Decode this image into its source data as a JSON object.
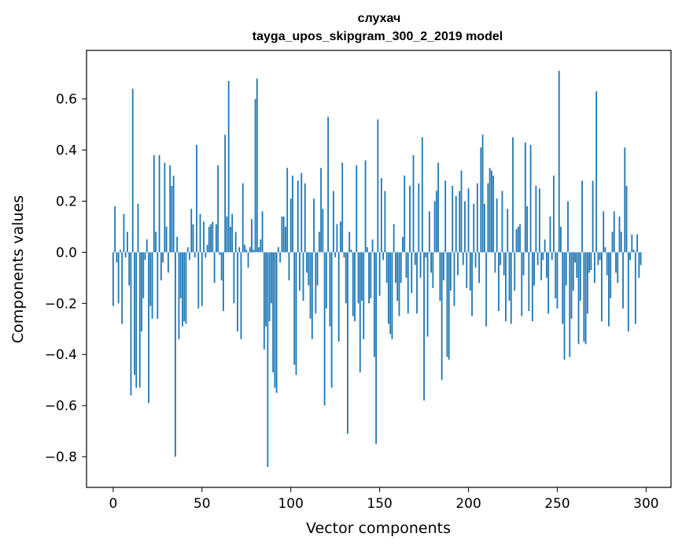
{
  "chart_data": {
    "type": "bar",
    "title": "слухач",
    "subtitle": "tayga_upos_skipgram_300_2_2019 model",
    "xlabel": "Vector components",
    "ylabel": "Components values",
    "xlim": [
      -15,
      314
    ],
    "ylim": [
      -0.92,
      0.79
    ],
    "xticks": [
      0,
      50,
      100,
      150,
      200,
      250,
      300
    ],
    "yticks": [
      -0.8,
      -0.6,
      -0.4,
      -0.2,
      0.0,
      0.2,
      0.4,
      0.6
    ],
    "ytick_labels": [
      "−0.8",
      "−0.6",
      "−0.4",
      "−0.2",
      "0.0",
      "0.2",
      "0.4",
      "0.6"
    ],
    "bar_color": "#1f77b4",
    "values": [
      -0.21,
      0.18,
      -0.04,
      -0.2,
      0.01,
      -0.28,
      0.15,
      -0.02,
      0.08,
      -0.13,
      -0.56,
      0.64,
      -0.48,
      -0.53,
      0.19,
      -0.53,
      -0.31,
      -0.18,
      -0.03,
      0.05,
      -0.59,
      -0.21,
      -0.26,
      0.38,
      0.08,
      -0.26,
      0.38,
      -0.11,
      -0.04,
      0.35,
      0.1,
      -0.08,
      0.34,
      0.26,
      0.3,
      -0.8,
      0.06,
      -0.34,
      -0.18,
      -0.29,
      -0.27,
      -0.28,
      0.02,
      -0.03,
      0.17,
      0.11,
      -0.02,
      0.42,
      -0.22,
      0.15,
      -0.21,
      0.12,
      -0.02,
      0.03,
      0.1,
      0.11,
      0.12,
      -0.12,
      0.11,
      0.34,
      -0.01,
      -0.11,
      -0.23,
      0.46,
      0.14,
      0.67,
      0.1,
      0.15,
      -0.2,
      0.08,
      -0.31,
      0.02,
      -0.34,
      0.27,
      0.03,
      0.01,
      -0.06,
      0.02,
      0.13,
      0.01,
      0.6,
      0.68,
      0.02,
      0.05,
      0.16,
      -0.38,
      -0.29,
      -0.84,
      -0.27,
      -0.2,
      -0.47,
      -0.53,
      -0.55,
      0.02,
      -0.04,
      0.14,
      0.14,
      0.1,
      0.33,
      -0.11,
      0.21,
      0.3,
      -0.44,
      -0.48,
      0.28,
      -0.15,
      0.31,
      -0.19,
      0.27,
      -0.08,
      -0.13,
      -0.26,
      -0.34,
      0.21,
      -0.24,
      -0.13,
      0.08,
      0.33,
      0.17,
      -0.6,
      -0.22,
      0.53,
      -0.29,
      -0.53,
      0.24,
      -0.02,
      0.11,
      -0.35,
      0.12,
      0.35,
      -0.02,
      -0.2,
      -0.71,
      0.08,
      0.01,
      -0.25,
      -0.27,
      0.34,
      -0.2,
      -0.47,
      -0.19,
      -0.34,
      0.36,
      0.02,
      -0.2,
      -0.18,
      0.05,
      -0.41,
      -0.75,
      0.52,
      -0.17,
      0.29,
      -0.03,
      0.24,
      -0.12,
      -0.28,
      -0.32,
      -0.34,
      0.11,
      -0.12,
      -0.19,
      -0.25,
      -0.12,
      0.06,
      0.3,
      -0.1,
      -0.24,
      0.26,
      -0.16,
      0.38,
      -0.05,
      -0.24,
      0.27,
      -0.1,
      0.45,
      -0.58,
      -0.02,
      -0.33,
      0.16,
      -0.08,
      -0.14,
      0.2,
      0.24,
      0.35,
      -0.19,
      -0.5,
      -0.11,
      0.28,
      -0.41,
      -0.42,
      -0.15,
      0.26,
      -0.21,
      0.22,
      -0.09,
      0.24,
      0.32,
      -0.05,
      0.2,
      -0.14,
      0.25,
      -0.15,
      -0.25,
      0.19,
      -0.06,
      0.27,
      -0.12,
      0.41,
      0.46,
      0.19,
      -0.29,
      0.27,
      0.33,
      0.32,
      0.3,
      -0.08,
      0.21,
      -0.23,
      -0.05,
      0.24,
      -0.09,
      -0.27,
      0.17,
      -0.19,
      -0.28,
      0.45,
      -0.15,
      0.09,
      0.1,
      0.11,
      -0.25,
      -0.09,
      0.43,
      0.18,
      -0.23,
      0.42,
      -0.27,
      -0.13,
      0.26,
      -0.05,
      0.25,
      -0.11,
      -0.03,
      0.05,
      -0.1,
      -0.24,
      0.14,
      -0.03,
      0.3,
      -0.18,
      -0.22,
      0.71,
      0.1,
      -0.28,
      -0.42,
      -0.13,
      0.2,
      -0.41,
      -0.26,
      -0.15,
      -0.04,
      -0.1,
      -0.36,
      -0.19,
      0.28,
      -0.35,
      -0.36,
      -0.24,
      -0.08,
      -0.07,
      0.28,
      -0.12,
      0.63,
      -0.05,
      -0.03,
      -0.27,
      0.16,
      0.02,
      -0.09,
      -0.29,
      -0.18,
      0.08,
      0.16,
      -0.08,
      -0.12,
      0.14,
      0.08,
      -0.22,
      0.41,
      0.26,
      -0.31,
      -0.03,
      0.07,
      0.01,
      -0.28,
      0.07,
      -0.1,
      -0.05,
      0.0
    ]
  }
}
